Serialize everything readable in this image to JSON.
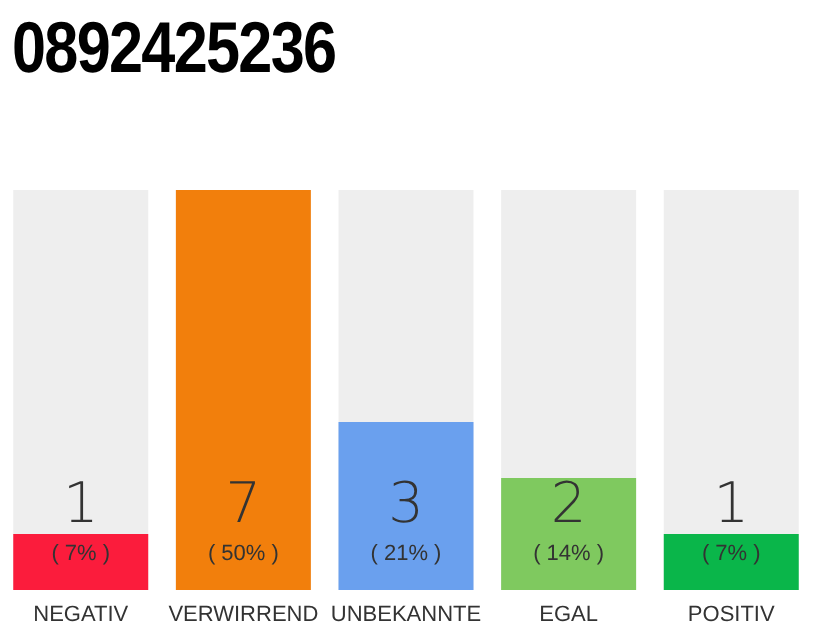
{
  "chart_data": {
    "type": "bar",
    "title": "0892425236",
    "categories": [
      "NEGATIV",
      "VERWIRREND",
      "UNBEKANNTE",
      "EGAL",
      "POSITIV"
    ],
    "values": [
      7,
      50,
      21,
      14,
      7
    ],
    "colors": [
      "#fb1c3c",
      "#f27f0c",
      "#6aa0ee",
      "#7fc95f",
      "#0ab64a"
    ],
    "value_labels": [
      "( 7% )",
      "( 50% )",
      "( 21% )",
      "( 14% )",
      "( 7% )"
    ],
    "annotations": [
      "1",
      "7",
      "3",
      "2",
      "1"
    ],
    "grid": false
  }
}
